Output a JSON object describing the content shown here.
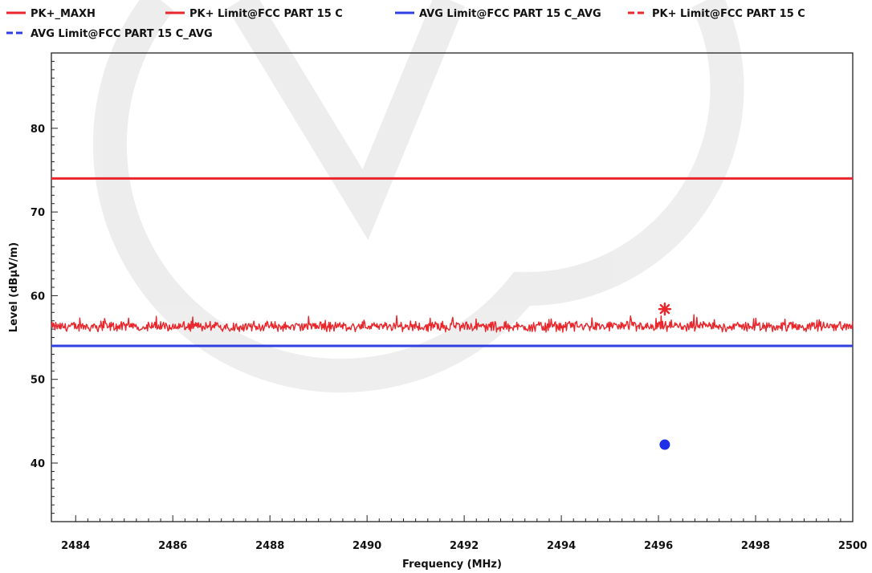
{
  "chart_data": {
    "type": "line",
    "xlabel": "Frequency (MHz)",
    "ylabel": "Level (dBµV/m)",
    "xlim": [
      2483.5,
      2500
    ],
    "ylim": [
      33,
      89
    ],
    "x_ticks": [
      "2484",
      "2486",
      "2488",
      "2490",
      "2492",
      "2494",
      "2496",
      "2498",
      "2500"
    ],
    "y_ticks": [
      "40",
      "50",
      "60",
      "70",
      "80"
    ],
    "grid": false,
    "legend_position": "top",
    "legend": [
      {
        "label": "PK+_MAXH",
        "color": "#e8262b",
        "style": "solid"
      },
      {
        "label": "PK+ Limit@FCC PART 15 C",
        "color": "#e8262b",
        "style": "solid"
      },
      {
        "label": "AVG Limit@FCC PART 15 C_AVG",
        "color": "#2f3fe0",
        "style": "solid"
      },
      {
        "label": "PK+ Limit@FCC PART 15 C",
        "color": "#e8262b",
        "style": "dashed"
      },
      {
        "label": "AVG Limit@FCC PART 15 C_AVG",
        "color": "#2f3fe0",
        "style": "dashed"
      }
    ],
    "series": [
      {
        "name": "PK+_MAXH",
        "color": "#e8262b",
        "kind": "noise-trace",
        "x_range": [
          2483.5,
          2500
        ],
        "level_mean": 56.3,
        "level_range": [
          55.6,
          57.8
        ]
      },
      {
        "name": "PK+ Limit@FCC PART 15 C",
        "color": "#e8262b",
        "kind": "hline",
        "y": 74
      },
      {
        "name": "AVG Limit@FCC PART 15 C_AVG",
        "color": "#2f3fe0",
        "kind": "hline",
        "y": 54
      }
    ],
    "markers": [
      {
        "type": "peak",
        "symbol": "asterisk",
        "x": 2496.13,
        "y": 58.4,
        "color": "#e8262b"
      },
      {
        "type": "average",
        "symbol": "dot",
        "x": 2496.13,
        "y": 42.2,
        "color": "#1f2fe6"
      }
    ]
  }
}
